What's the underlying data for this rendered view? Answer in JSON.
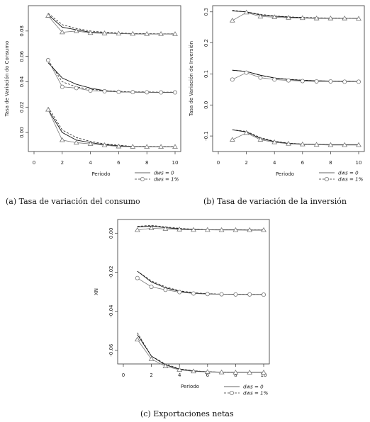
{
  "captions": {
    "a": "(a) Tasa de variación del consumo",
    "b": "(b) Tasa de variación de la inversión",
    "c": "(c) Exportaciones netas"
  },
  "chart_data": [
    {
      "type": "line",
      "xlabel": "Periodo",
      "ylabel": "Tasa de Variación do Consumo",
      "xlim": [
        0,
        10
      ],
      "ylim": [
        -0.015,
        0.1
      ],
      "xticks": [
        0,
        2,
        4,
        6,
        8,
        10
      ],
      "yticks": [
        0.0,
        0.02,
        0.04,
        0.06,
        0.08
      ],
      "ytick_labels": [
        "0.00",
        "0.02",
        "0.04",
        "0.06",
        "0.08"
      ],
      "legend": {
        "position": "bottom-right",
        "items": [
          {
            "label": "dws = 0",
            "style": "solid"
          },
          {
            "label": "dws = 1%",
            "style": "dashed-circle"
          }
        ]
      },
      "bands": [
        {
          "upper": [
            0.094,
            0.085,
            0.082,
            0.08,
            0.079,
            0.0785,
            0.078,
            0.078,
            0.0778,
            0.0778
          ],
          "lower": [
            0.092,
            0.079,
            0.08,
            0.0785,
            0.0782,
            0.078,
            0.0778,
            0.0777,
            0.0777,
            0.0776
          ],
          "solid": [
            0.093,
            0.083,
            0.081,
            0.079,
            0.0785,
            0.078,
            0.0778,
            0.0777,
            0.0777,
            0.0776
          ],
          "marker": "triangle"
        },
        {
          "upper": [
            0.057,
            0.04,
            0.036,
            0.034,
            0.033,
            0.0325,
            0.032,
            0.032,
            0.0318,
            0.0318
          ],
          "lower": [
            0.057,
            0.036,
            0.035,
            0.033,
            0.0325,
            0.032,
            0.0318,
            0.0317,
            0.0316,
            0.0316
          ],
          "solid": [
            0.055,
            0.043,
            0.038,
            0.035,
            0.033,
            0.032,
            0.0318,
            0.0317,
            0.0316,
            0.0316
          ],
          "marker": "circle"
        },
        {
          "upper": [
            0.02,
            0.002,
            -0.004,
            -0.007,
            -0.009,
            -0.01,
            -0.011,
            -0.011,
            -0.0112,
            -0.0112
          ],
          "lower": [
            0.018,
            -0.006,
            -0.008,
            -0.009,
            -0.01,
            -0.011,
            -0.0112,
            -0.0113,
            -0.0113,
            -0.0113
          ],
          "solid": [
            0.018,
            0.0,
            -0.006,
            -0.008,
            -0.0095,
            -0.0105,
            -0.011,
            -0.0112,
            -0.0112,
            -0.0113
          ],
          "marker": "triangle"
        }
      ]
    },
    {
      "type": "line",
      "xlabel": "Periodo",
      "ylabel": "Tasa de Variación de Inversión",
      "xlim": [
        0,
        10
      ],
      "ylim": [
        -0.15,
        0.32
      ],
      "xticks": [
        0,
        2,
        4,
        6,
        8,
        10
      ],
      "yticks": [
        -0.1,
        0.0,
        0.1,
        0.2,
        0.3
      ],
      "ytick_labels": [
        "-0.1",
        "0.0",
        "0.1",
        "0.2",
        "0.3"
      ],
      "legend": {
        "position": "bottom-right",
        "items": [
          {
            "label": "dws = 0",
            "style": "solid"
          },
          {
            "label": "dws = 1%",
            "style": "dashed-circle"
          }
        ]
      },
      "bands": [
        {
          "upper": [
            0.305,
            0.3,
            0.292,
            0.287,
            0.284,
            0.282,
            0.281,
            0.28,
            0.28,
            0.279
          ],
          "lower": [
            0.272,
            0.298,
            0.285,
            0.283,
            0.281,
            0.28,
            0.279,
            0.279,
            0.279,
            0.278
          ],
          "solid": [
            0.303,
            0.3,
            0.29,
            0.286,
            0.283,
            0.281,
            0.28,
            0.28,
            0.279,
            0.279
          ],
          "marker": "triangle"
        },
        {
          "upper": [
            0.112,
            0.108,
            0.095,
            0.087,
            0.083,
            0.08,
            0.078,
            0.077,
            0.077,
            0.076
          ],
          "lower": [
            0.082,
            0.104,
            0.088,
            0.082,
            0.079,
            0.077,
            0.076,
            0.076,
            0.075,
            0.075
          ],
          "solid": [
            0.112,
            0.108,
            0.096,
            0.087,
            0.082,
            0.079,
            0.078,
            0.077,
            0.076,
            0.076
          ],
          "marker": "circle"
        },
        {
          "upper": [
            -0.08,
            -0.085,
            -0.105,
            -0.117,
            -0.123,
            -0.126,
            -0.127,
            -0.128,
            -0.128,
            -0.128
          ],
          "lower": [
            -0.112,
            -0.09,
            -0.112,
            -0.12,
            -0.125,
            -0.127,
            -0.128,
            -0.129,
            -0.129,
            -0.129
          ],
          "solid": [
            -0.08,
            -0.087,
            -0.108,
            -0.118,
            -0.124,
            -0.126,
            -0.127,
            -0.128,
            -0.128,
            -0.128
          ],
          "marker": "triangle"
        }
      ]
    },
    {
      "type": "line",
      "xlabel": "Periodo",
      "ylabel": "XN",
      "xlim": [
        0,
        10
      ],
      "ylim": [
        -0.067,
        0.007
      ],
      "xticks": [
        0,
        2,
        4,
        6,
        8,
        10
      ],
      "yticks": [
        0.0,
        -0.02,
        -0.04,
        -0.06
      ],
      "ytick_labels": [
        "0.00",
        "-0.02",
        "-0.04",
        "-0.06"
      ],
      "legend": {
        "position": "bottom-right",
        "items": [
          {
            "label": "dws = 0",
            "style": "solid"
          },
          {
            "label": "dws = 1%",
            "style": "dashed-circle"
          }
        ]
      },
      "bands": [
        {
          "upper": [
            0.0035,
            0.004,
            0.0032,
            0.0025,
            0.002,
            0.0018,
            0.0017,
            0.0017,
            0.0017,
            0.0017
          ],
          "lower": [
            0.0016,
            0.0025,
            0.0022,
            0.0019,
            0.0017,
            0.0017,
            0.0016,
            0.0016,
            0.0016,
            0.0016
          ],
          "solid": [
            0.0032,
            0.0036,
            0.0028,
            0.0022,
            0.0019,
            0.0017,
            0.0017,
            0.0017,
            0.0016,
            0.0016
          ],
          "marker": "triangle"
        },
        {
          "upper": [
            -0.0195,
            -0.0245,
            -0.0275,
            -0.0295,
            -0.0305,
            -0.031,
            -0.0312,
            -0.0313,
            -0.0313,
            -0.0314
          ],
          "lower": [
            -0.023,
            -0.0275,
            -0.029,
            -0.0302,
            -0.0309,
            -0.0312,
            -0.0313,
            -0.0314,
            -0.0314,
            -0.0315
          ],
          "solid": [
            -0.0195,
            -0.025,
            -0.028,
            -0.0298,
            -0.0307,
            -0.0311,
            -0.0313,
            -0.0313,
            -0.0314,
            -0.0314
          ],
          "marker": "circle"
        },
        {
          "upper": [
            -0.051,
            -0.063,
            -0.067,
            -0.0695,
            -0.0705,
            -0.071,
            -0.0712,
            -0.0713,
            -0.0713,
            -0.0713
          ],
          "lower": [
            -0.0545,
            -0.0645,
            -0.0682,
            -0.07,
            -0.0708,
            -0.0711,
            -0.0713,
            -0.0714,
            -0.0714,
            -0.0714
          ],
          "solid": [
            -0.052,
            -0.063,
            -0.0675,
            -0.0697,
            -0.0706,
            -0.071,
            -0.0712,
            -0.0713,
            -0.0713,
            -0.0713
          ],
          "marker": "triangle"
        }
      ]
    }
  ]
}
